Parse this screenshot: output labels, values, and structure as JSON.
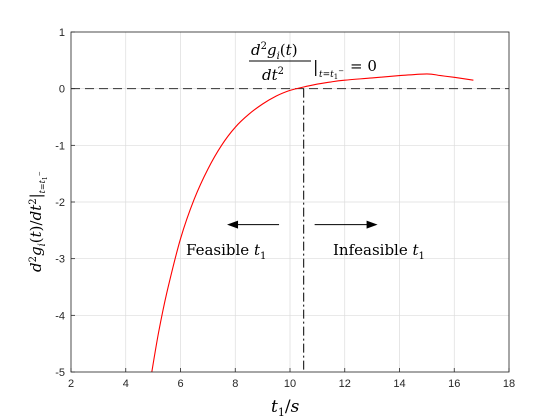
{
  "chart_data": {
    "type": "line",
    "title": "",
    "xlabel": "t_1/s",
    "ylabel": "d^2 g_i(t)/dt^2 |_{t=t_1^-}",
    "xlim": [
      2,
      18
    ],
    "ylim": [
      -5,
      1
    ],
    "x_ticks": [
      2,
      4,
      6,
      8,
      10,
      12,
      14,
      16,
      18
    ],
    "y_ticks": [
      -5,
      -4,
      -3,
      -2,
      -1,
      0,
      1
    ],
    "grid": true,
    "series": [
      {
        "color": "#ff0000",
        "x": [
          4.95,
          5.2,
          5.5,
          6.0,
          6.5,
          7.0,
          7.5,
          8.0,
          8.5,
          9.0,
          9.5,
          10.0,
          10.5,
          11.0,
          11.5,
          12.0,
          13.0,
          14.0,
          15.0,
          15.5,
          16.0,
          16.7
        ],
        "y": [
          -5.0,
          -4.3,
          -3.6,
          -2.65,
          -1.95,
          -1.42,
          -1.0,
          -0.68,
          -0.45,
          -0.27,
          -0.13,
          -0.03,
          0.03,
          0.08,
          0.12,
          0.15,
          0.19,
          0.23,
          0.26,
          0.23,
          0.2,
          0.15
        ]
      }
    ],
    "reference_lines": [
      {
        "orientation": "horizontal",
        "value": 0,
        "style": "dashed",
        "color": "#333333"
      },
      {
        "orientation": "vertical",
        "value": 10.5,
        "style": "dash-dot",
        "color": "#000000"
      }
    ],
    "annotations": {
      "top_label": "d²gᵢ(t)/dt² |t=t₁⁻ = 0",
      "left_label": "Feasible t₁",
      "right_label": "Infeasible t₁",
      "arrow_left": {
        "from": [
          9.6,
          -2.4
        ],
        "to": [
          7.7,
          -2.4
        ]
      },
      "arrow_right": {
        "from": [
          10.9,
          -2.4
        ],
        "to": [
          13.2,
          -2.4
        ]
      }
    }
  }
}
